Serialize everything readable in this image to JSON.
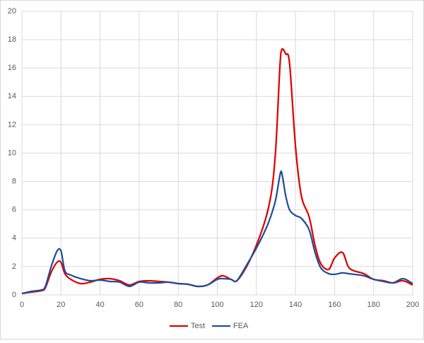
{
  "chart_data": {
    "type": "line",
    "x": [
      0,
      5,
      10,
      12,
      15,
      18,
      20,
      22,
      25,
      30,
      35,
      40,
      45,
      50,
      55,
      60,
      65,
      70,
      75,
      80,
      85,
      90,
      95,
      100,
      103,
      107,
      110,
      115,
      120,
      125,
      128,
      130,
      132,
      133,
      135,
      137,
      140,
      143,
      147,
      150,
      153,
      157,
      160,
      164,
      167,
      170,
      175,
      180,
      185,
      190,
      195,
      200
    ],
    "series": [
      {
        "name": "Test",
        "color": "#e00000",
        "values": [
          0.1,
          0.2,
          0.3,
          0.5,
          1.6,
          2.3,
          2.3,
          1.5,
          1.1,
          0.8,
          0.9,
          1.1,
          1.15,
          1.0,
          0.7,
          0.95,
          1.0,
          0.95,
          0.9,
          0.8,
          0.75,
          0.6,
          0.7,
          1.2,
          1.35,
          1.1,
          1.0,
          2.0,
          3.5,
          5.5,
          7.5,
          10.5,
          16.0,
          17.3,
          17.0,
          16.3,
          10.5,
          7.0,
          5.5,
          3.5,
          2.2,
          1.8,
          2.6,
          3.0,
          2.0,
          1.7,
          1.5,
          1.1,
          1.0,
          0.85,
          1.0,
          0.7
        ]
      },
      {
        "name": "FEA",
        "color": "#1f4e9c",
        "values": [
          0.1,
          0.25,
          0.35,
          0.6,
          2.0,
          3.1,
          3.1,
          1.7,
          1.4,
          1.15,
          1.0,
          1.05,
          0.95,
          0.9,
          0.6,
          0.9,
          0.85,
          0.85,
          0.9,
          0.8,
          0.75,
          0.6,
          0.7,
          1.1,
          1.15,
          1.1,
          1.0,
          2.1,
          3.3,
          4.7,
          5.8,
          6.8,
          8.4,
          8.6,
          7.0,
          6.0,
          5.6,
          5.4,
          4.6,
          3.0,
          1.9,
          1.5,
          1.45,
          1.55,
          1.5,
          1.45,
          1.35,
          1.1,
          0.95,
          0.85,
          1.15,
          0.8
        ]
      }
    ],
    "xlim": [
      0,
      200
    ],
    "xticks": [
      0,
      20,
      40,
      60,
      80,
      100,
      120,
      140,
      160,
      180,
      200
    ],
    "ylim": [
      0,
      20
    ],
    "yticks": [
      0,
      2,
      4,
      6,
      8,
      10,
      12,
      14,
      16,
      18,
      20
    ],
    "grid": true,
    "legend": "bottom"
  }
}
